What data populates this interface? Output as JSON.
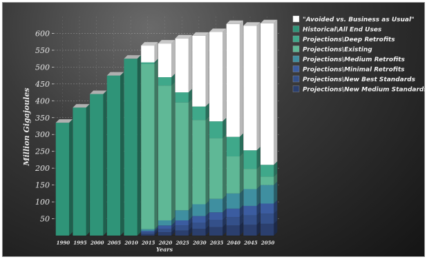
{
  "chart_data": {
    "type": "bar",
    "stacked": true,
    "title": "",
    "xlabel": "Years",
    "ylabel": "Million Gigajoules",
    "ylim": [
      0,
      650
    ],
    "yticks": [
      50,
      100,
      150,
      200,
      250,
      300,
      350,
      400,
      450,
      500,
      550,
      600
    ],
    "ytick_labels": [
      "50",
      "100",
      "150",
      "200",
      "250",
      "300",
      "350",
      "400",
      "450",
      "500",
      "550",
      "600"
    ],
    "grid": true,
    "legend_position": "top-right",
    "categories": [
      "1990",
      "1995",
      "2000",
      "2005",
      "2010",
      "2015",
      "2020",
      "2025",
      "2030",
      "2035",
      "2040",
      "2045",
      "2050"
    ],
    "series": [
      {
        "name": "Projections\\New Medium Standards",
        "color": "#2b3f6e",
        "values": [
          0,
          0,
          0,
          0,
          0,
          5,
          10,
          15,
          20,
          25,
          30,
          32,
          35
        ]
      },
      {
        "name": "Projections\\New Best Standards",
        "color": "#34508a",
        "values": [
          0,
          0,
          0,
          0,
          0,
          5,
          10,
          15,
          18,
          22,
          25,
          28,
          30
        ]
      },
      {
        "name": "Projections\\Minimal Retrofits",
        "color": "#3b5ca0",
        "values": [
          0,
          0,
          0,
          0,
          0,
          4,
          10,
          15,
          20,
          22,
          25,
          28,
          30
        ]
      },
      {
        "name": "Projections\\Medium Retrofits",
        "color": "#3f8fa0",
        "values": [
          0,
          0,
          0,
          0,
          0,
          5,
          15,
          30,
          35,
          40,
          45,
          50,
          55
        ]
      },
      {
        "name": "Projections\\Existing",
        "color": "#5fb896",
        "values": [
          0,
          0,
          0,
          0,
          0,
          490,
          400,
          320,
          250,
          180,
          110,
          60,
          25
        ]
      },
      {
        "name": "Projections\\Deep Retrofits",
        "color": "#3fa88a",
        "values": [
          0,
          0,
          0,
          0,
          0,
          5,
          25,
          30,
          40,
          50,
          58,
          55,
          35
        ]
      },
      {
        "name": "Historical\\All End Uses",
        "color": "#2f9478",
        "values": [
          335,
          380,
          420,
          475,
          525,
          0,
          0,
          0,
          0,
          0,
          0,
          0,
          0
        ]
      },
      {
        "name": "\"Avoided vs. Business as Usual\"",
        "color": "#ffffff",
        "values": [
          0,
          0,
          0,
          0,
          0,
          50,
          100,
          160,
          210,
          265,
          335,
          370,
          420
        ]
      }
    ],
    "legend_order": [
      "\"Avoided vs. Business as Usual\"",
      "Historical\\All End Uses",
      "Projections\\Deep Retrofits",
      "Projections\\Existing",
      "Projections\\Medium Retrofits",
      "Projections\\Minimal Retrofits",
      "Projections\\New Best Standards",
      "Projections\\New Medium Standards"
    ]
  }
}
